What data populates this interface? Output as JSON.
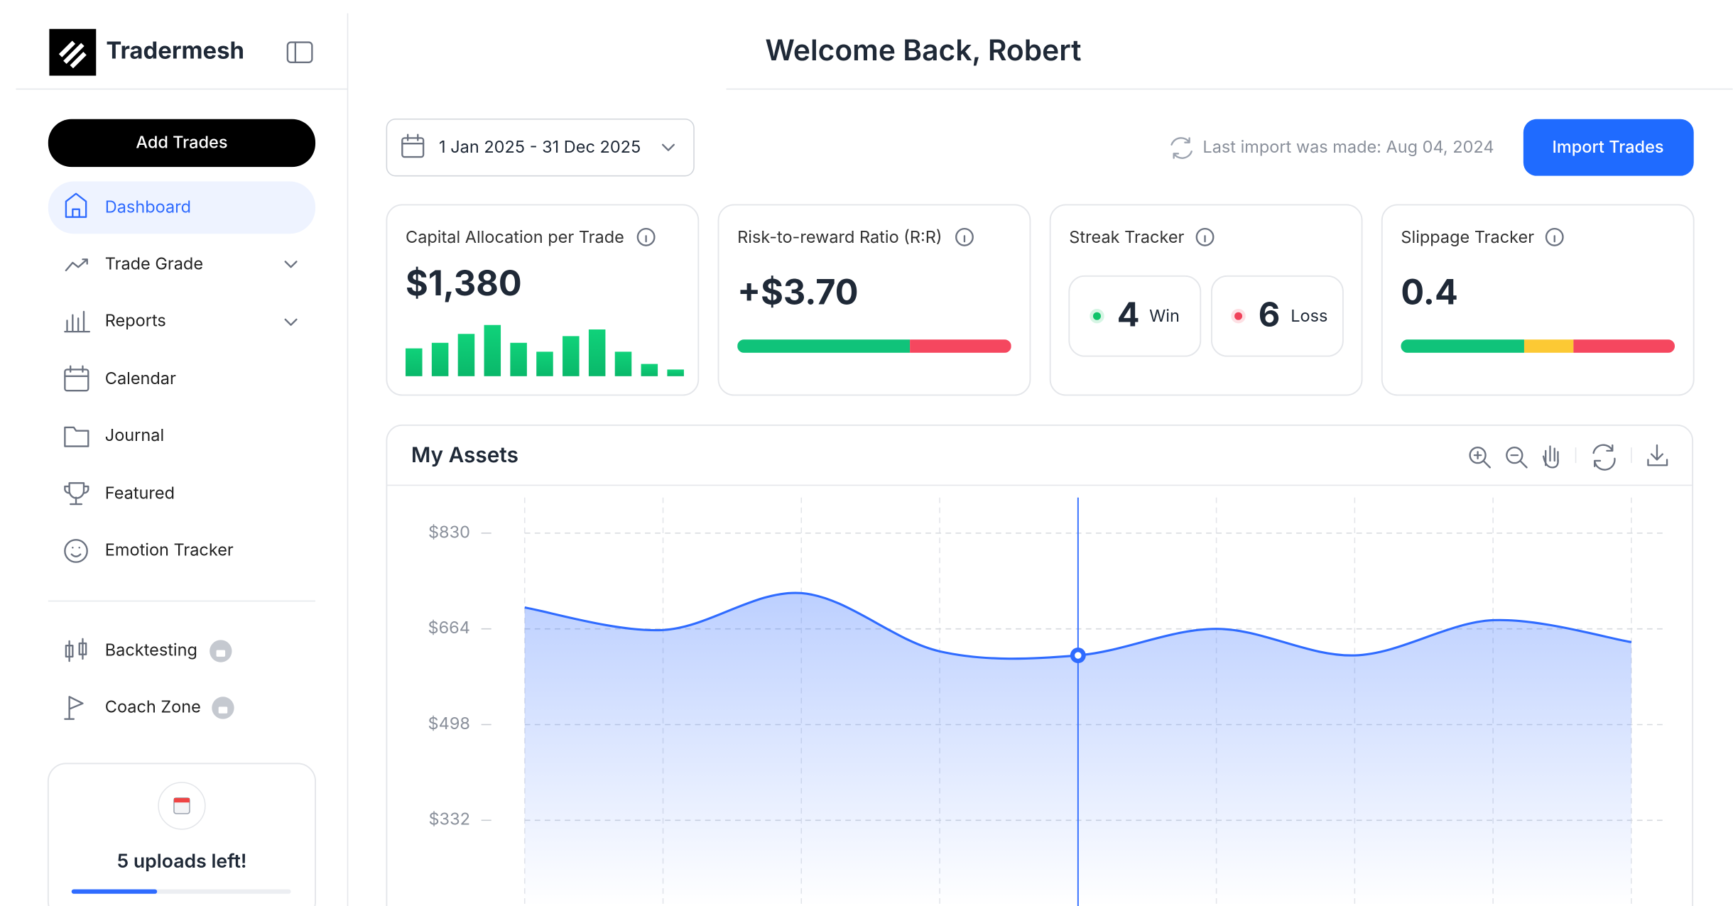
{
  "sidebar": {
    "brand": "Tradermesh",
    "add_button": "Add Trades",
    "nav": [
      "Dashboard",
      "Trade Grade",
      "Reports",
      "Calendar",
      "Journal",
      "Featured",
      "Emotion Tracker"
    ],
    "locked": [
      "Backtesting",
      "Coach Zone"
    ],
    "uploads": {
      "label": "5 uploads left!",
      "progress": 39
    }
  },
  "header": {
    "title": "Welcome Back, Robert"
  },
  "toolbar": {
    "date_range": "1 Jan 2025 - 31 Dec 2025",
    "last_import": "Last import was made: Aug 04, 2024",
    "import_button": "Import Trades"
  },
  "cards": {
    "capital": {
      "title": "Capital Allocation per Trade",
      "value": "$1,380",
      "bars": [
        25,
        30,
        38,
        46,
        30,
        22,
        36,
        42,
        22,
        11,
        6
      ]
    },
    "rr": {
      "title": "Risk-to-reward Ratio (R:R)",
      "value": "+$3.70",
      "split": [
        63,
        37
      ]
    },
    "streak": {
      "title": "Streak Tracker",
      "wins": 4,
      "win_label": "Win",
      "losses": 6,
      "loss_label": "Loss"
    },
    "slippage": {
      "title": "Slippage Tracker",
      "value": "0.4",
      "split": [
        45,
        18,
        37
      ]
    }
  },
  "chart_data": {
    "type": "area",
    "title": "My Assets",
    "color": "#2f6bff",
    "values": [
      701,
      662,
      726,
      625,
      618,
      664,
      618,
      679,
      641
    ],
    "ylim": [
      0,
      830
    ],
    "yticks": [
      {
        "value": 830,
        "label": "$830"
      },
      {
        "value": 664,
        "label": "$664"
      },
      {
        "value": 498,
        "label": "$498"
      },
      {
        "value": 332,
        "label": "$332"
      }
    ],
    "grid": true,
    "highlight_index": 4
  }
}
